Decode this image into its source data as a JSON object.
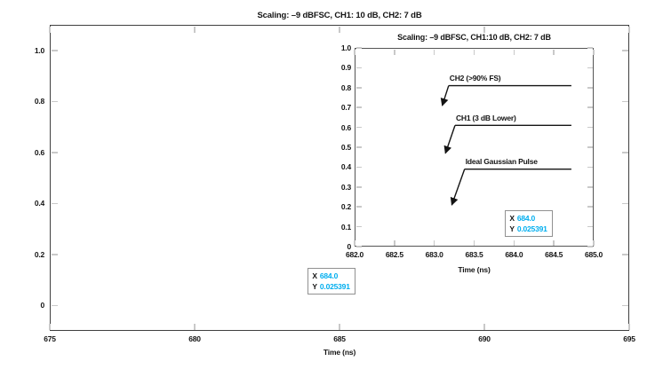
{
  "figure": {
    "background": "#ffffff",
    "text_color": "#141414",
    "axis_color": "#3f3f3f",
    "tick_color": "#c9c9c9",
    "accent_cyan": "#00AEEF",
    "tooltip_border": "#919191"
  },
  "chart_data": [
    {
      "id": "main",
      "type": "line",
      "title": "Scaling: –9 dBFSC, CH1: 10 dB, CH2: 7 dB",
      "xlabel": "Time (ns)",
      "ylabel": "",
      "xlim": [
        675,
        695
      ],
      "ylim": [
        -0.1,
        1.1
      ],
      "xtick_values": [
        675,
        680,
        685,
        690,
        695
      ],
      "xtick_labels": [
        "675",
        "680",
        "685",
        "690",
        "695"
      ],
      "ytick_values": [
        0,
        0.2,
        0.4,
        0.6,
        0.8,
        1.0
      ],
      "ytick_labels": [
        "0",
        "0.2",
        "0.4",
        "0.6",
        "0.8",
        "1.0"
      ],
      "grid": false,
      "series": [],
      "cursor": {
        "x_label": "X",
        "y_label": "Y",
        "x_text": "684.0",
        "y_text": "0.025391",
        "point": [
          684.0,
          0.025391
        ]
      }
    },
    {
      "id": "inset",
      "type": "line",
      "title": "Scaling: –9 dBFSC, CH1:10 dB, CH2: 7 dB",
      "xlabel": "Time (ns)",
      "ylabel": "",
      "xlim": [
        682,
        685
      ],
      "ylim": [
        0,
        1.0
      ],
      "xtick_values": [
        682,
        682.5,
        683,
        683.5,
        684,
        684.5,
        685
      ],
      "xtick_labels": [
        "682.0",
        "682.5",
        "683.0",
        "683.5",
        "684.0",
        "684.5",
        "685.0"
      ],
      "ytick_values": [
        0,
        0.1,
        0.2,
        0.3,
        0.4,
        0.5,
        0.6,
        0.7,
        0.8,
        0.9,
        1.0
      ],
      "ytick_labels": [
        "0",
        "0.1",
        "0.2",
        "0.3",
        "0.4",
        "0.5",
        "0.6",
        "0.7",
        "0.8",
        "0.9",
        "1.0"
      ],
      "grid": false,
      "annotations": [
        {
          "label": "CH2 (>90% FS)",
          "line_y": 0.81,
          "line_x_start": 683.18,
          "line_x_end": 684.72,
          "arrow_tip": [
            683.1,
            0.71
          ]
        },
        {
          "label": "CH1 (3 dB Lower)",
          "line_y": 0.61,
          "line_x_start": 683.26,
          "line_x_end": 684.72,
          "arrow_tip": [
            683.14,
            0.47
          ]
        },
        {
          "label": "Ideal Gaussian Pulse",
          "line_y": 0.39,
          "line_x_start": 683.38,
          "line_x_end": 684.72,
          "arrow_tip": [
            683.22,
            0.21
          ]
        }
      ],
      "cursor": {
        "x_label": "X",
        "y_label": "Y",
        "x_text": "684.0",
        "y_text": "0.025391",
        "point": [
          684.0,
          0.025391
        ]
      }
    }
  ]
}
